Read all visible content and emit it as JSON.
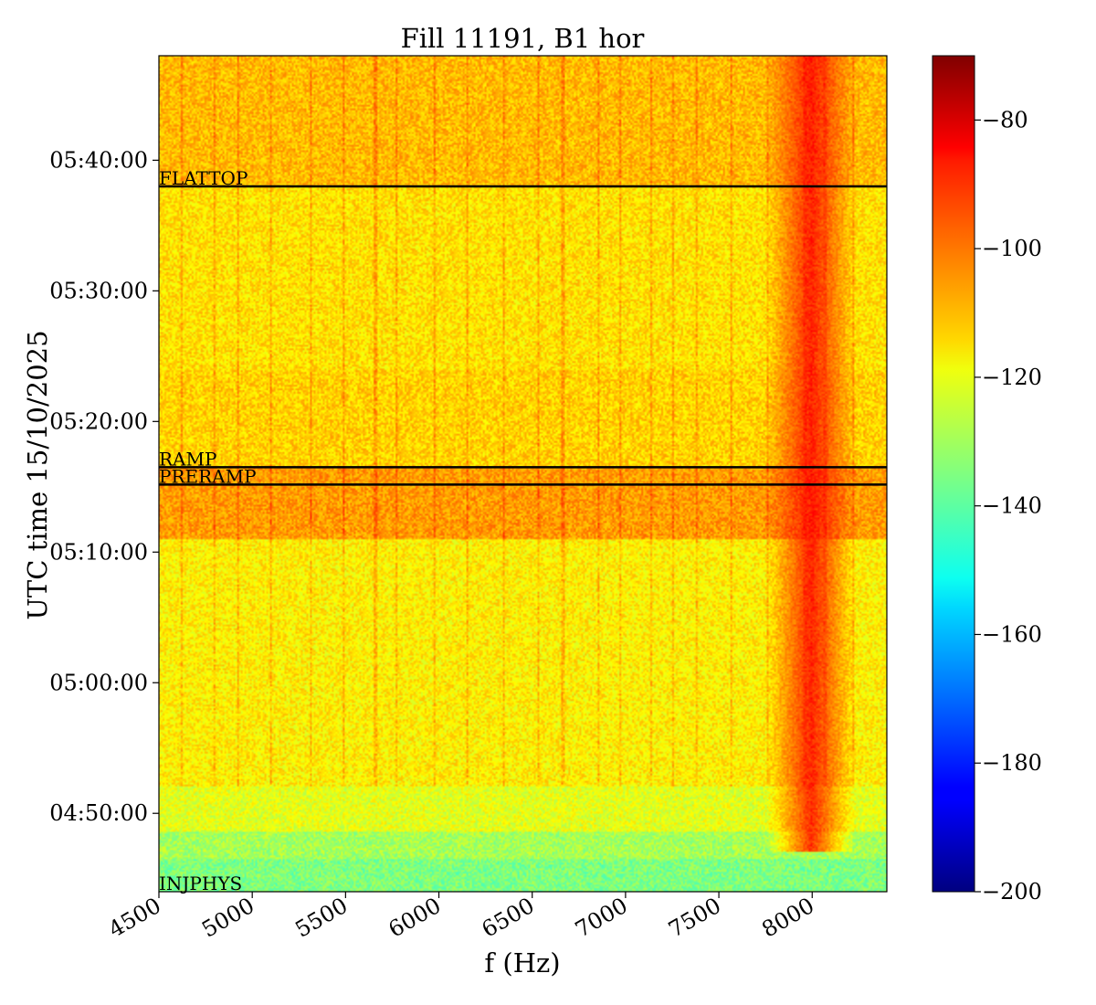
{
  "chart_data": {
    "type": "heatmap",
    "title": "Fill 11191, B1 hor",
    "xlabel": "f (Hz)",
    "ylabel": "UTC time 15/10/2025",
    "xlim": [
      4500,
      8400
    ],
    "ylim": [
      "04:44:00",
      "05:48:00"
    ],
    "x_ticks": [
      4500,
      5000,
      5500,
      6000,
      6500,
      7000,
      7500,
      8000
    ],
    "y_ticks": [
      "04:50:00",
      "05:00:00",
      "05:10:00",
      "05:20:00",
      "05:30:00",
      "05:40:00"
    ],
    "colorscale": "jet",
    "color_range": [
      -200,
      -70
    ],
    "colorbar_ticks": [
      "−80",
      "−100",
      "−120",
      "−140",
      "−160",
      "−180",
      "−200"
    ],
    "colorbar_tick_values": [
      -80,
      -100,
      -120,
      -140,
      -160,
      -180,
      -200
    ],
    "phases": [
      {
        "label": "FLATTOP",
        "time": "05:38:00"
      },
      {
        "label": "RAMP",
        "time": "05:16:30"
      },
      {
        "label": "PRERAMP",
        "time": "05:15:10"
      },
      {
        "label": "INJPHYS",
        "time": "04:44:00"
      }
    ],
    "intensity_regions": [
      {
        "from": "04:44:00",
        "to": "04:46:30",
        "level_db": -135
      },
      {
        "from": "04:46:30",
        "to": "04:48:30",
        "level_db": -130
      },
      {
        "from": "04:48:30",
        "to": "04:52:00",
        "level_db": -122
      },
      {
        "from": "04:52:00",
        "to": "05:11:00",
        "level_db": -117
      },
      {
        "from": "05:11:00",
        "to": "05:16:30",
        "level_db": -106
      },
      {
        "from": "05:16:30",
        "to": "05:24:00",
        "level_db": -113
      },
      {
        "from": "05:24:00",
        "to": "05:38:00",
        "level_db": -115
      },
      {
        "from": "05:38:00",
        "to": "05:48:00",
        "level_db": -110
      }
    ],
    "hotspot": {
      "f_center": 8000,
      "from": "04:47:00",
      "to": "05:48:00",
      "level_db": -86
    }
  }
}
